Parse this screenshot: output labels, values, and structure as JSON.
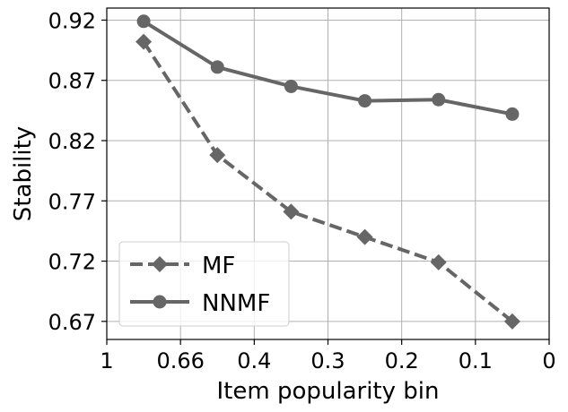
{
  "chart_data": {
    "type": "line",
    "title": "",
    "xlabel": "Item popularity bin",
    "ylabel": "Stability",
    "x_ticks": [
      {
        "label": "1",
        "pos": 0
      },
      {
        "label": "0.66",
        "pos": 1
      },
      {
        "label": "0.4",
        "pos": 2
      },
      {
        "label": "0.3",
        "pos": 3
      },
      {
        "label": "0.2",
        "pos": 4
      },
      {
        "label": "0.1",
        "pos": 5
      },
      {
        "label": "0",
        "pos": 6
      }
    ],
    "x_range": [
      0,
      6
    ],
    "y_ticks": [
      0.67,
      0.72,
      0.77,
      0.82,
      0.87,
      0.92
    ],
    "y_tick_labels": [
      "0.67",
      "0.72",
      "0.77",
      "0.82",
      "0.87",
      "0.92"
    ],
    "ylim": [
      0.655,
      0.93
    ],
    "grid": true,
    "legend_position": "lower-left",
    "series": [
      {
        "name": "MF",
        "style": "dashed",
        "marker": "diamond",
        "color": "#666666",
        "x": [
          0.5,
          1.5,
          2.5,
          3.5,
          4.5,
          5.5
        ],
        "values": [
          0.902,
          0.808,
          0.761,
          0.74,
          0.719,
          0.67
        ]
      },
      {
        "name": "NNMF",
        "style": "solid",
        "marker": "circle",
        "color": "#666666",
        "x": [
          0.5,
          1.5,
          2.5,
          3.5,
          4.5,
          5.5
        ],
        "values": [
          0.919,
          0.881,
          0.865,
          0.853,
          0.854,
          0.842
        ]
      }
    ]
  }
}
